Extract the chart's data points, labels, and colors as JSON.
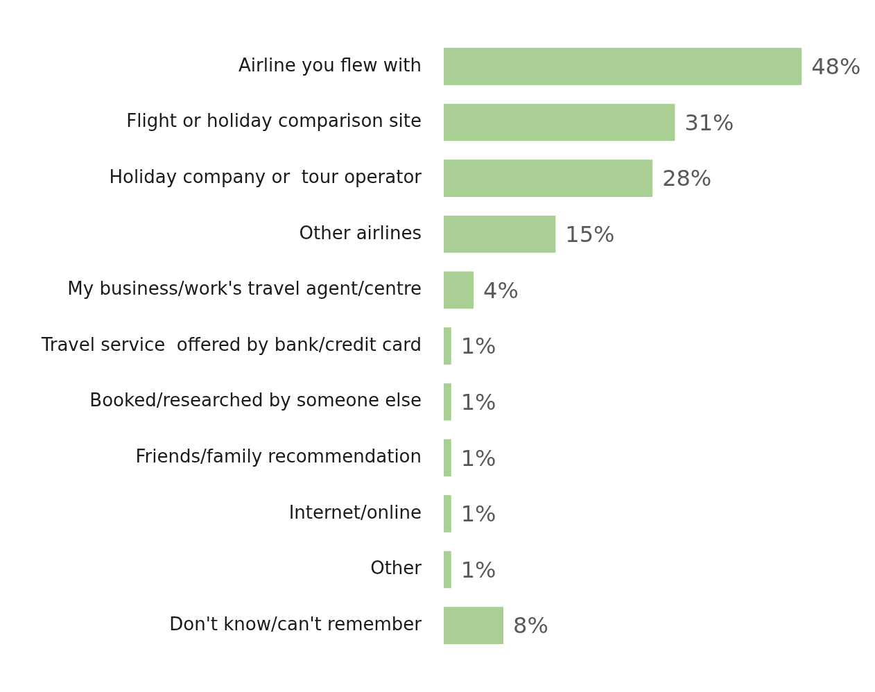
{
  "chart_data": {
    "type": "bar",
    "orientation": "horizontal",
    "categories": [
      "Airline you flew with",
      "Flight or holiday comparison site",
      "Holiday company or  tour operator",
      "Other airlines",
      "My business/work's travel agent/centre",
      "Travel service  offered by bank/credit card",
      "Booked/researched by someone else",
      "Friends/family recommendation",
      "Internet/online",
      "Other",
      "Don't know/can't remember"
    ],
    "values": [
      48,
      31,
      28,
      15,
      4,
      1,
      1,
      1,
      1,
      1,
      8
    ],
    "value_labels": [
      "48%",
      "31%",
      "28%",
      "15%",
      "4%",
      "1%",
      "1%",
      "1%",
      "1%",
      "1%",
      "8%"
    ],
    "color": "#a9cf94"
  }
}
